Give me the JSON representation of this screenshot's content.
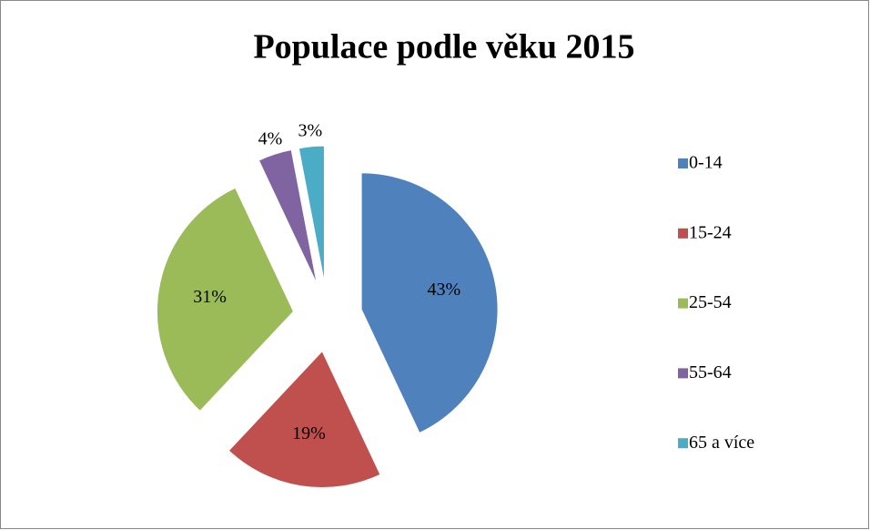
{
  "chart_data": {
    "type": "pie",
    "title": "Populace podle věku 2015",
    "categories": [
      "0-14",
      "15-24",
      "25-54",
      "55-64",
      "65 a více"
    ],
    "values": [
      43,
      19,
      31,
      4,
      3
    ],
    "value_labels": [
      "43%",
      "19%",
      "31%",
      "4%",
      "3%"
    ],
    "colors": [
      "#4f81bd",
      "#c0504d",
      "#9bbb59",
      "#8064a2",
      "#4bacc6"
    ],
    "legend": "right"
  }
}
